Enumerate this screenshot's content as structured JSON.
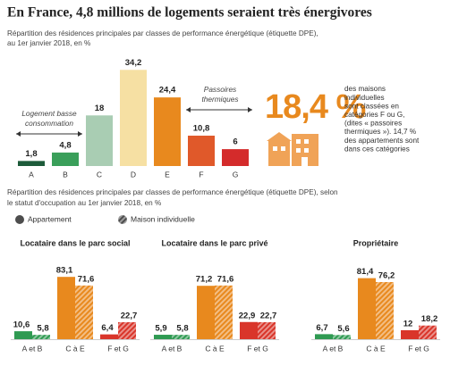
{
  "title": "En France, 4,8 millions de logements seraient très énergivores",
  "highlight": {
    "figure": "18,4 %",
    "lines": [
      "des maisons",
      "individuelles",
      "sont classées en",
      "catégories F ou G,",
      "(dites « passoires",
      "thermiques »). 14,7 %",
      "des appartements sont",
      "dans ces catégories"
    ]
  },
  "section_subtitle": [
    "Répartition des résidences principales par classes de performance énergétique (étiquette DPE), selon",
    "le statut d'occupation au 1er janvier 2018, en %"
  ],
  "chart_data": [
    {
      "type": "bar",
      "subtitle": [
        "Répartition des résidences principales par classes de performance énergétique (étiquette DPE),",
        "au 1er janvier 2018, en %"
      ],
      "categories": [
        "A",
        "B",
        "C",
        "D",
        "E",
        "F",
        "G"
      ],
      "values": [
        1.8,
        4.8,
        18,
        34.2,
        24.4,
        10.8,
        6
      ],
      "value_labels": [
        "1,8",
        "4,8",
        "18",
        "34,2",
        "24,4",
        "10,8",
        "6"
      ],
      "colors": [
        "#1d5b3a",
        "#3a9f5a",
        "#a9cdb3",
        "#f6e0a3",
        "#e8891e",
        "#e0592a",
        "#d42b2b"
      ],
      "annotations": [
        [
          "Logement basse",
          "consommation"
        ],
        [
          "Passoires",
          "thermiques"
        ]
      ]
    },
    {
      "type": "grouped-bar",
      "title": "Locataire dans le parc social",
      "categories": [
        "A et B",
        "C à E",
        "F et G"
      ],
      "colors": [
        "#2f9a52",
        "#e8891e",
        "#d9352a"
      ],
      "series": [
        {
          "name": "Appartement",
          "color": "#4d4d4d",
          "values": [
            10.6,
            83.1,
            6.4
          ],
          "value_labels": [
            "10,6",
            "83,1",
            "6,4"
          ]
        },
        {
          "name": "Maison individuelle",
          "color": "#4d4d4d",
          "hatched": true,
          "values": [
            5.8,
            71.6,
            22.7
          ],
          "value_labels": [
            "5,8",
            "71,6",
            "22,7"
          ]
        }
      ]
    },
    {
      "type": "grouped-bar",
      "title": "Locataire dans le parc privé",
      "categories": [
        "A et B",
        "C à E",
        "F et G"
      ],
      "colors": [
        "#2f9a52",
        "#e8891e",
        "#d9352a"
      ],
      "series": [
        {
          "values": [
            5.9,
            71.2,
            22.9
          ],
          "value_labels": [
            "5,9",
            "71,2",
            "22,9"
          ]
        },
        {
          "hatched": true,
          "values": [
            5.8,
            71.6,
            22.7
          ],
          "value_labels": [
            "5,8",
            "71,6",
            "22,7"
          ]
        }
      ]
    },
    {
      "type": "grouped-bar",
      "title": "Propriétaire",
      "categories": [
        "A et B",
        "C à E",
        "F et G"
      ],
      "colors": [
        "#2f9a52",
        "#e8891e",
        "#d9352a"
      ],
      "series": [
        {
          "values": [
            6.7,
            81.4,
            12
          ],
          "value_labels": [
            "6,7",
            "81,4",
            "12"
          ]
        },
        {
          "hatched": true,
          "values": [
            5.6,
            76.2,
            18.2
          ],
          "value_labels": [
            "5,6",
            "76,2",
            "18,2"
          ]
        }
      ]
    }
  ]
}
